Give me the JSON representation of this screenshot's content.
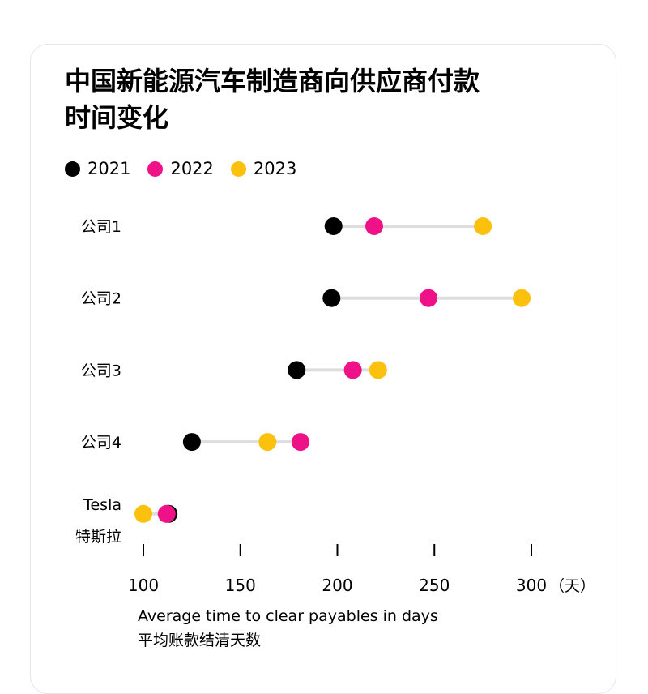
{
  "chart_data": {
    "type": "dot-plot",
    "title": "中国新能源汽车制造商向供应商付款时间变化",
    "title_lines": [
      "中国新能源汽车制造商向供应商付款",
      "时间变化"
    ],
    "legend": [
      {
        "label": "2021",
        "color": "#000000"
      },
      {
        "label": "2022",
        "color": "#ee1188"
      },
      {
        "label": "2023",
        "color": "#fcc10d"
      }
    ],
    "categories": [
      {
        "label": "公司1",
        "sublabel": ""
      },
      {
        "label": "公司2",
        "sublabel": ""
      },
      {
        "label": "公司3",
        "sublabel": ""
      },
      {
        "label": "公司4",
        "sublabel": ""
      },
      {
        "label": "Tesla",
        "sublabel": "特斯拉"
      }
    ],
    "series": [
      {
        "name": "2021",
        "color": "#000000",
        "values": [
          198,
          197,
          179,
          125,
          113
        ]
      },
      {
        "name": "2022",
        "color": "#ee1188",
        "values": [
          219,
          247,
          208,
          181,
          112
        ]
      },
      {
        "name": "2023",
        "color": "#fcc10d",
        "values": [
          275,
          295,
          221,
          164,
          100
        ]
      }
    ],
    "x_ticks": [
      100,
      150,
      200,
      250,
      300
    ],
    "x_unit": "（天）",
    "xlim": [
      100,
      300
    ],
    "xlabel": "Average time to clear payables in days",
    "xlabel_zh": "平均账款结清天数",
    "connector_color": "#dddddd",
    "legend_position": "top-left"
  }
}
